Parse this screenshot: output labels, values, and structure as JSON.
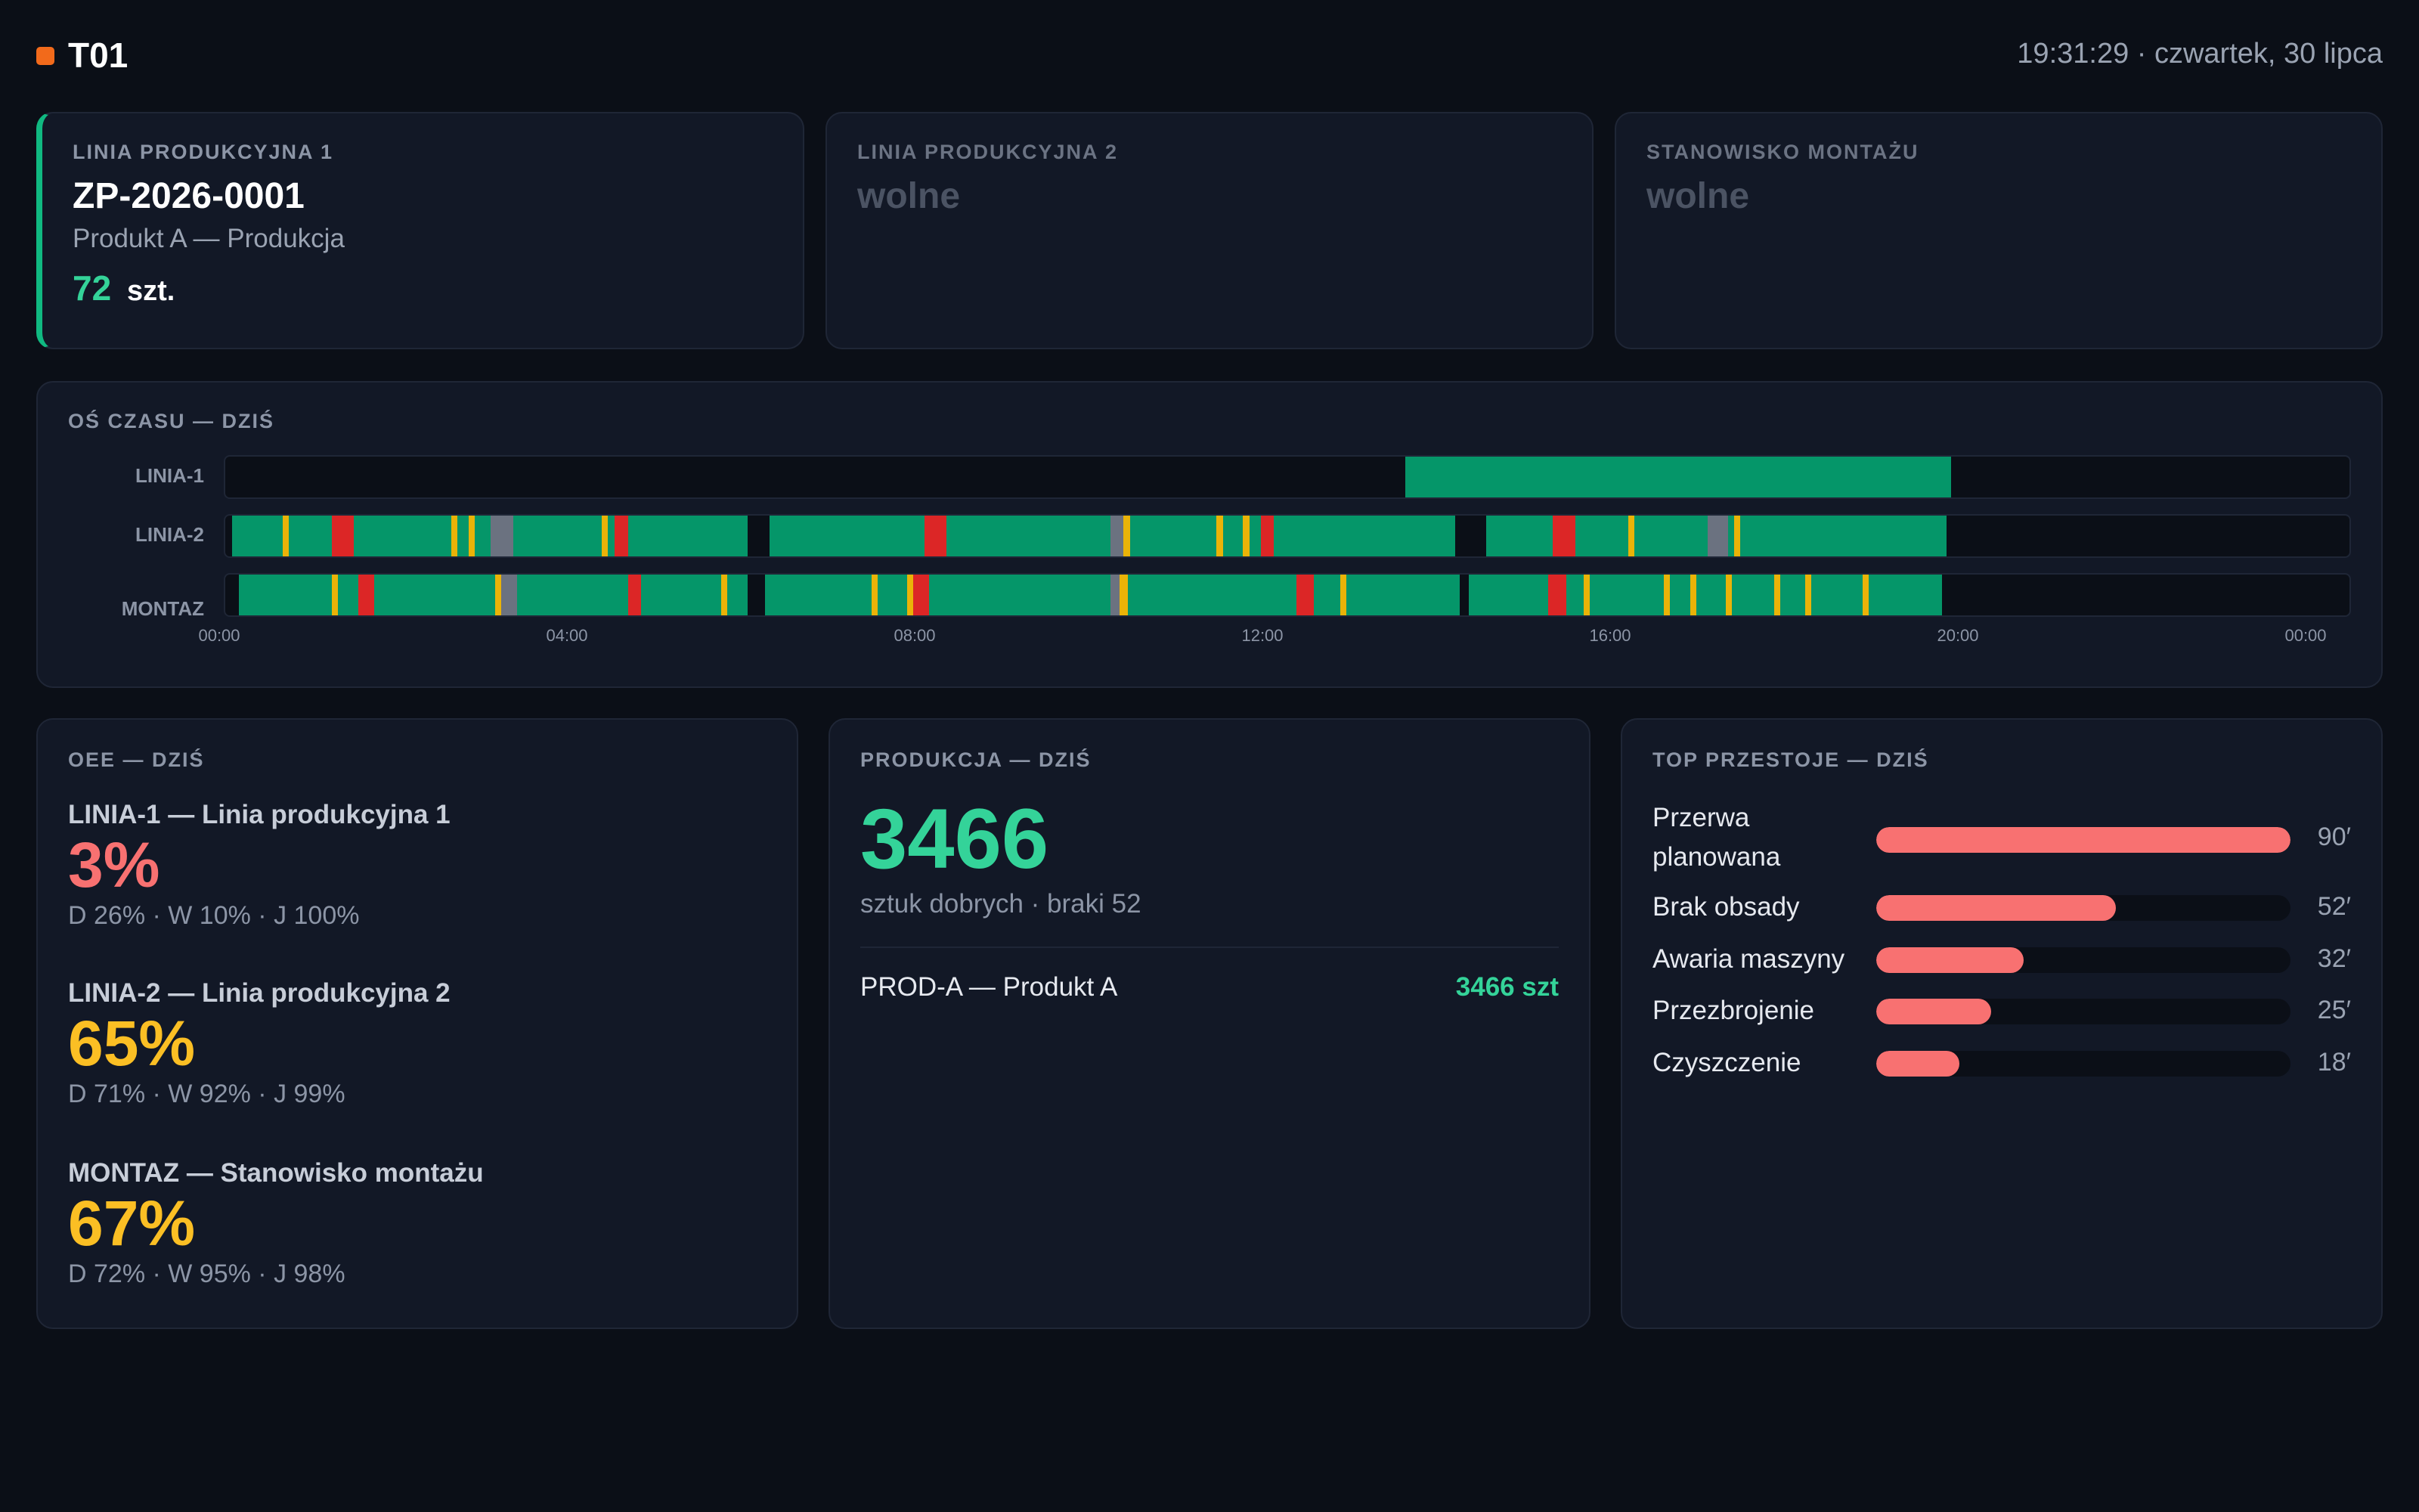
{
  "header": {
    "station": "T01",
    "clock": "19:31:29 · czwartek, 30 lipca"
  },
  "lines": [
    {
      "title": "LINIA PRODUKCYJNA 1",
      "order": "ZP-2026-0001",
      "product": "Produkt A — Produkcja",
      "qty": "72",
      "unit": "szt."
    },
    {
      "title": "LINIA PRODUKCYJNA 2",
      "order": "wolne"
    },
    {
      "title": "STANOWISKO MONTAŻU",
      "order": "wolne"
    }
  ],
  "timeline": {
    "title": "OŚ CZASU — DZIŚ",
    "rows": [
      {
        "label": "LINIA-1",
        "segments": [
          {
            "start": 13.33,
            "end": 19.5,
            "state": "run"
          }
        ]
      },
      {
        "label": "LINIA-2",
        "segments": [
          {
            "start": 0.08,
            "end": 5.9,
            "state": "run"
          },
          {
            "start": 0.65,
            "end": 0.72,
            "state": "warn"
          },
          {
            "start": 1.2,
            "end": 1.45,
            "state": "down"
          },
          {
            "start": 2.55,
            "end": 2.62,
            "state": "warn"
          },
          {
            "start": 2.75,
            "end": 2.82,
            "state": "warn"
          },
          {
            "start": 3.0,
            "end": 3.25,
            "state": "idle"
          },
          {
            "start": 4.25,
            "end": 4.32,
            "state": "warn"
          },
          {
            "start": 4.4,
            "end": 4.55,
            "state": "down"
          },
          {
            "start": 6.15,
            "end": 13.9,
            "state": "run"
          },
          {
            "start": 7.9,
            "end": 8.15,
            "state": "down"
          },
          {
            "start": 10.0,
            "end": 10.15,
            "state": "idle"
          },
          {
            "start": 10.15,
            "end": 10.22,
            "state": "warn"
          },
          {
            "start": 11.2,
            "end": 11.27,
            "state": "warn"
          },
          {
            "start": 11.5,
            "end": 11.57,
            "state": "warn"
          },
          {
            "start": 11.7,
            "end": 11.85,
            "state": "down"
          },
          {
            "start": 14.25,
            "end": 19.45,
            "state": "run"
          },
          {
            "start": 15.0,
            "end": 15.25,
            "state": "down"
          },
          {
            "start": 15.85,
            "end": 15.92,
            "state": "warn"
          },
          {
            "start": 16.75,
            "end": 16.98,
            "state": "idle"
          },
          {
            "start": 17.05,
            "end": 17.12,
            "state": "warn"
          }
        ]
      },
      {
        "label": "MONTAZ",
        "segments": [
          {
            "start": 0.15,
            "end": 5.9,
            "state": "run"
          },
          {
            "start": 1.2,
            "end": 1.27,
            "state": "warn"
          },
          {
            "start": 1.5,
            "end": 1.68,
            "state": "down"
          },
          {
            "start": 3.05,
            "end": 3.12,
            "state": "warn"
          },
          {
            "start": 3.12,
            "end": 3.3,
            "state": "idle"
          },
          {
            "start": 4.55,
            "end": 4.7,
            "state": "down"
          },
          {
            "start": 5.6,
            "end": 5.67,
            "state": "warn"
          },
          {
            "start": 6.1,
            "end": 13.95,
            "state": "run"
          },
          {
            "start": 7.3,
            "end": 7.37,
            "state": "warn"
          },
          {
            "start": 7.7,
            "end": 7.77,
            "state": "warn"
          },
          {
            "start": 7.77,
            "end": 7.95,
            "state": "down"
          },
          {
            "start": 10.0,
            "end": 10.1,
            "state": "idle"
          },
          {
            "start": 10.1,
            "end": 10.2,
            "state": "warn"
          },
          {
            "start": 12.1,
            "end": 12.3,
            "state": "down"
          },
          {
            "start": 12.6,
            "end": 12.67,
            "state": "warn"
          },
          {
            "start": 14.05,
            "end": 19.4,
            "state": "run"
          },
          {
            "start": 14.95,
            "end": 15.15,
            "state": "down"
          },
          {
            "start": 15.35,
            "end": 15.42,
            "state": "warn"
          },
          {
            "start": 16.25,
            "end": 16.32,
            "state": "warn"
          },
          {
            "start": 16.55,
            "end": 16.62,
            "state": "warn"
          },
          {
            "start": 16.95,
            "end": 17.02,
            "state": "warn"
          },
          {
            "start": 17.5,
            "end": 17.57,
            "state": "warn"
          },
          {
            "start": 17.85,
            "end": 17.92,
            "state": "warn"
          },
          {
            "start": 18.5,
            "end": 18.57,
            "state": "warn"
          }
        ]
      }
    ],
    "ticks": [
      "00:00",
      "04:00",
      "08:00",
      "12:00",
      "16:00",
      "20:00",
      "00:00"
    ],
    "colors": {
      "run": "#059669",
      "down": "#dc2626",
      "warn": "#eab308",
      "idle": "#6b7280"
    }
  },
  "oee": {
    "title": "OEE — DZIŚ",
    "items": [
      {
        "name": "LINIA-1 — Linia produkcyjna 1",
        "value": "3%",
        "detail": "D 26% · W 10% · J 100%",
        "color": "#f87171"
      },
      {
        "name": "LINIA-2 — Linia produkcyjna 2",
        "value": "65%",
        "detail": "D 71% · W 92% · J 99%",
        "color": "#fbbf24"
      },
      {
        "name": "MONTAZ — Stanowisko montażu",
        "value": "67%",
        "detail": "D 72% · W 95% · J 98%",
        "color": "#fbbf24"
      }
    ]
  },
  "production": {
    "title": "PRODUKCJA — DZIŚ",
    "total": "3466",
    "subtitle": "sztuk dobrych · braki 52",
    "rows": [
      {
        "name": "PROD-A — Produkt A",
        "qty": "3466 szt"
      }
    ]
  },
  "downtime": {
    "title": "TOP PRZESTOJE — DZIŚ",
    "max": 90,
    "items": [
      {
        "label": "Przerwa planowana",
        "minutes": 90,
        "value": "90′"
      },
      {
        "label": "Brak obsady",
        "minutes": 52,
        "value": "52′"
      },
      {
        "label": "Awaria maszyny",
        "minutes": 32,
        "value": "32′"
      },
      {
        "label": "Przezbrojenie",
        "minutes": 25,
        "value": "25′"
      },
      {
        "label": "Czyszczenie",
        "minutes": 18,
        "value": "18′"
      }
    ]
  }
}
